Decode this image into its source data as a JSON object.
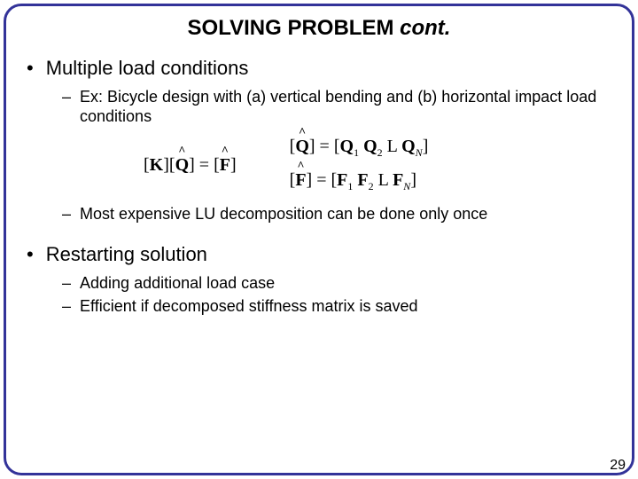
{
  "title_main": "SOLVING PROBLEM ",
  "title_italic": "cont.",
  "bullets": {
    "b1": "Multiple load conditions",
    "b1s1": "Ex: Bicycle design with (a) vertical bending and (b) horizontal impact load conditions",
    "b1s2": "Most expensive LU decomposition can be done only once",
    "b2": "Restarting solution",
    "b2s1": "Adding additional load case",
    "b2s2": "Efficient if decomposed stiffness matrix is saved"
  },
  "equations": {
    "left": {
      "K": "K",
      "Q": "Q",
      "eq": " = ",
      "F": "F"
    },
    "r1": {
      "Q": "Q",
      "eq": " = [",
      "Q1": "Q",
      "s1": "1",
      "sp": " ",
      "Q2": "Q",
      "s2": "2",
      "L": " L  ",
      "QN": "Q",
      "sN": "N",
      "close": "]"
    },
    "r2": {
      "F": "F",
      "eq": " = [",
      "F1": "F",
      "s1": "1",
      "sp": " ",
      "F2": "F",
      "s2": "2",
      "L": " L  ",
      "FN": "F",
      "sN": "N",
      "close": "]"
    }
  },
  "page_number": "29",
  "colors": {
    "border": "#333399",
    "text": "#000000",
    "background": "#ffffff"
  }
}
